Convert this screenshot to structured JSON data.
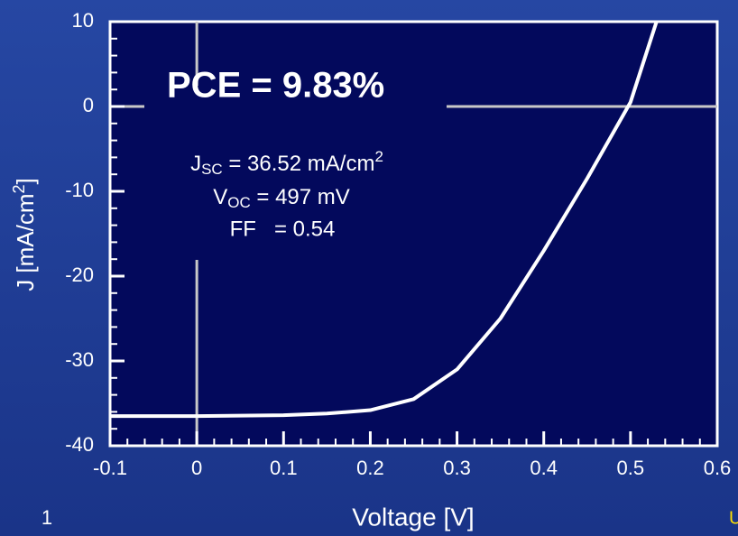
{
  "chart_data": {
    "type": "line",
    "xlabel": "Voltage [V]",
    "ylabel": [
      "J [mA/cm",
      "2",
      "]"
    ],
    "annotations": {
      "pce": "PCE = 9.83%",
      "jsc": [
        "J",
        "SC",
        " = 36.52 mA/cm",
        "2"
      ],
      "voc": [
        "V",
        "OC",
        " = 497 mV"
      ],
      "ff": "FF   = 0.54"
    },
    "x": [
      -0.1,
      0,
      0.05,
      0.1,
      0.15,
      0.2,
      0.25,
      0.3,
      0.35,
      0.4,
      0.45,
      0.5,
      0.53
    ],
    "series": [
      {
        "name": "J-V",
        "color": "#ffffff",
        "values": [
          -36.5,
          -36.5,
          -36.45,
          -36.4,
          -36.2,
          -35.8,
          -34.5,
          -31,
          -25,
          -17,
          -8.5,
          0.5,
          10
        ]
      }
    ],
    "xlim": [
      -0.1,
      0.6
    ],
    "xticks": [
      -0.1,
      0,
      0.1,
      0.2,
      0.3,
      0.4,
      0.5,
      0.6
    ],
    "ylim": [
      -40,
      10
    ],
    "yticks": [
      10,
      0,
      -10,
      -20,
      -30,
      -40
    ],
    "page_number": "1",
    "corner_text": "U"
  }
}
